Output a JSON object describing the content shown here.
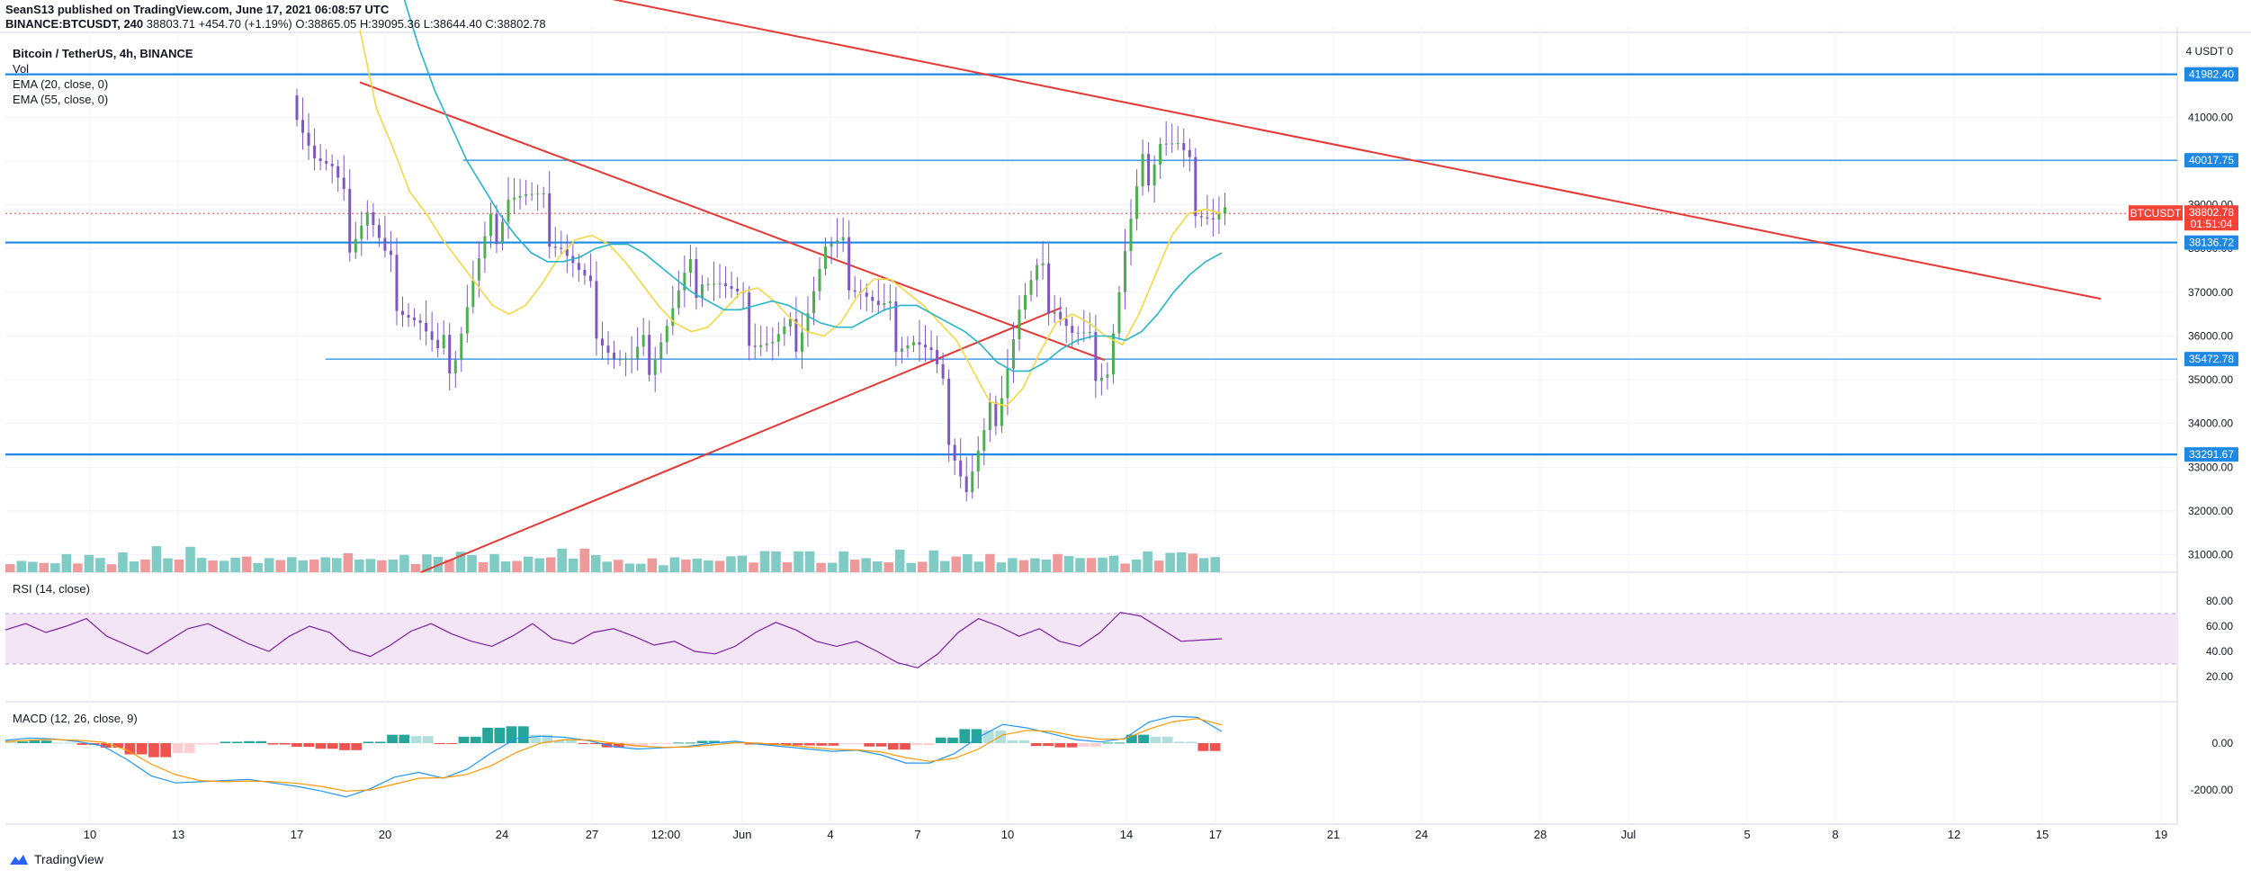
{
  "header": {
    "line1": "SeanS13 published on TradingView.com, June 17, 2021 06:08:57 UTC",
    "symbol": "BINANCE:BTCUSDT, 240",
    "last": "38803.71",
    "change": "+454.70 (+1.19%)",
    "ohlc": "O:38865.05 H:39095.36 L:38644.40 C:38802.78"
  },
  "legend": {
    "title": "Bitcoin / TetherUS, 4h, BINANCE",
    "vol": "Vol",
    "ema20": "EMA (20, close, 0)",
    "ema55": "EMA (55, close, 0)"
  },
  "rsi_label": "RSI (14, close)",
  "macd_label": "MACD (12, 26, close, 9)",
  "footer_brand": "TradingView",
  "colors": {
    "up": "#26a69a",
    "down": "#ef5350",
    "candle_up_body": "#4caf50",
    "candle": "#7e57c2",
    "ema20": "#f5d742",
    "ema55": "#26b5c9",
    "trendline": "#e53935",
    "hline": "#1e88e5",
    "rsi": "#7b1fa2",
    "rsi_band": "#f3e5f5",
    "price_tag": "#f44336"
  },
  "chart_data": {
    "type": "line",
    "price_axis_ticks": [
      "41000.00",
      "40000.00",
      "39000.00",
      "38000.00",
      "37000.00",
      "36000.00",
      "35000.00",
      "34000.00",
      "33000.00",
      "32000.00",
      "31000.00"
    ],
    "price_range": [
      30600,
      42900
    ],
    "top_label": "4 USDT 0",
    "horizontal_levels": [
      "41982.40",
      "40017.75",
      "38136.72",
      "35472.78",
      "33291.67"
    ],
    "last_price_tag": {
      "symbol": "BTCUSDT",
      "price": "38802.78",
      "countdown": "01:51:04"
    },
    "x_ticks": [
      "10",
      "13",
      "17",
      "20",
      "24",
      "27",
      "12:00",
      "Jun",
      "4",
      "7",
      "10",
      "14",
      "17",
      "21",
      "24",
      "28",
      "Jul",
      "5",
      "8",
      "12",
      "15",
      "19"
    ],
    "price_series": [
      41500,
      40200,
      39600,
      38400,
      38900,
      37600,
      36900,
      36300,
      35300,
      35800,
      37200,
      38300,
      39400,
      39100,
      38700,
      38200,
      37300,
      36500,
      35600,
      35200,
      35600,
      36300,
      37100,
      37600,
      37200,
      36600,
      36100,
      35800,
      35900,
      36800,
      37900,
      37700,
      37200,
      36500,
      36200,
      36000,
      35400,
      34000,
      32500,
      33500,
      35000,
      36600,
      37200,
      36900,
      36000,
      35600,
      35400,
      37800,
      39600,
      40600,
      40200,
      39300,
      38803
    ],
    "ema20_series": [
      43000,
      41200,
      40300,
      39300,
      38800,
      38200,
      37700,
      37200,
      36700,
      36500,
      36700,
      37200,
      37800,
      38200,
      38300,
      38100,
      37700,
      37200,
      36700,
      36300,
      36100,
      36200,
      36600,
      37000,
      37100,
      36800,
      36400,
      36100,
      36000,
      36300,
      36900,
      37300,
      37300,
      37000,
      36700,
      36300,
      35900,
      35200,
      34500,
      34400,
      34800,
      35600,
      36300,
      36500,
      36300,
      36000,
      35800,
      36500,
      37400,
      38300,
      38800,
      38900,
      38800
    ],
    "ema55_series": [
      44500,
      43800,
      42600,
      41600,
      40800,
      40000,
      39400,
      38800,
      38300,
      37900,
      37700,
      37700,
      37800,
      38000,
      38100,
      38100,
      37900,
      37600,
      37300,
      37000,
      36800,
      36600,
      36600,
      36700,
      36800,
      36700,
      36500,
      36300,
      36200,
      36200,
      36400,
      36600,
      36700,
      36700,
      36500,
      36300,
      36100,
      35800,
      35400,
      35200,
      35200,
      35400,
      35700,
      35900,
      36000,
      36000,
      35900,
      36100,
      36500,
      37000,
      37400,
      37700,
      37900
    ],
    "rsi_axis_ticks": [
      "80.00",
      "60.00",
      "40.00",
      "20.00"
    ],
    "rsi_band": [
      30,
      70
    ],
    "rsi_series": [
      57,
      62,
      55,
      60,
      66,
      52,
      45,
      38,
      48,
      58,
      62,
      54,
      46,
      40,
      52,
      60,
      55,
      41,
      36,
      45,
      56,
      62,
      54,
      48,
      44,
      52,
      62,
      50,
      46,
      55,
      58,
      52,
      45,
      48,
      40,
      38,
      44,
      55,
      63,
      57,
      48,
      44,
      48,
      40,
      31,
      27,
      38,
      55,
      66,
      60,
      52,
      58,
      48,
      44,
      55,
      71,
      68,
      58,
      48,
      49,
      50
    ],
    "macd_axis_ticks": [
      "0.00",
      "-2000.00"
    ],
    "macd_series": [
      120,
      220,
      180,
      60,
      -120,
      -700,
      -1400,
      -1700,
      -1650,
      -1600,
      -1550,
      -1700,
      -1850,
      -2050,
      -2300,
      -1950,
      -1450,
      -1250,
      -1500,
      -1100,
      -400,
      200,
      300,
      250,
      100,
      -150,
      -250,
      -200,
      -150,
      0,
      80,
      -50,
      -150,
      -250,
      -350,
      -300,
      -500,
      -850,
      -850,
      -450,
      250,
      800,
      650,
      400,
      150,
      50,
      200,
      900,
      1150,
      1100,
      500
    ],
    "signal_series": [
      60,
      130,
      160,
      120,
      40,
      -300,
      -900,
      -1350,
      -1600,
      -1650,
      -1620,
      -1650,
      -1720,
      -1850,
      -2050,
      -2000,
      -1750,
      -1500,
      -1480,
      -1330,
      -950,
      -400,
      0,
      150,
      130,
      0,
      -120,
      -180,
      -170,
      -80,
      20,
      0,
      -80,
      -170,
      -260,
      -290,
      -380,
      -620,
      -780,
      -650,
      -250,
      350,
      550,
      500,
      300,
      170,
      180,
      600,
      920,
      1050,
      780
    ],
    "volume_series": [
      15,
      16,
      12,
      16,
      12,
      20,
      14,
      22,
      15,
      12,
      24,
      20,
      18,
      30,
      24,
      17,
      28,
      23,
      15,
      12,
      22,
      19,
      17,
      20,
      14,
      26,
      16,
      14,
      24,
      18,
      20,
      19,
      16,
      22,
      18,
      20,
      14,
      24,
      17,
      20,
      26,
      18,
      15,
      22,
      20,
      16,
      18,
      24,
      20,
      26,
      22,
      30,
      18,
      16
    ]
  }
}
